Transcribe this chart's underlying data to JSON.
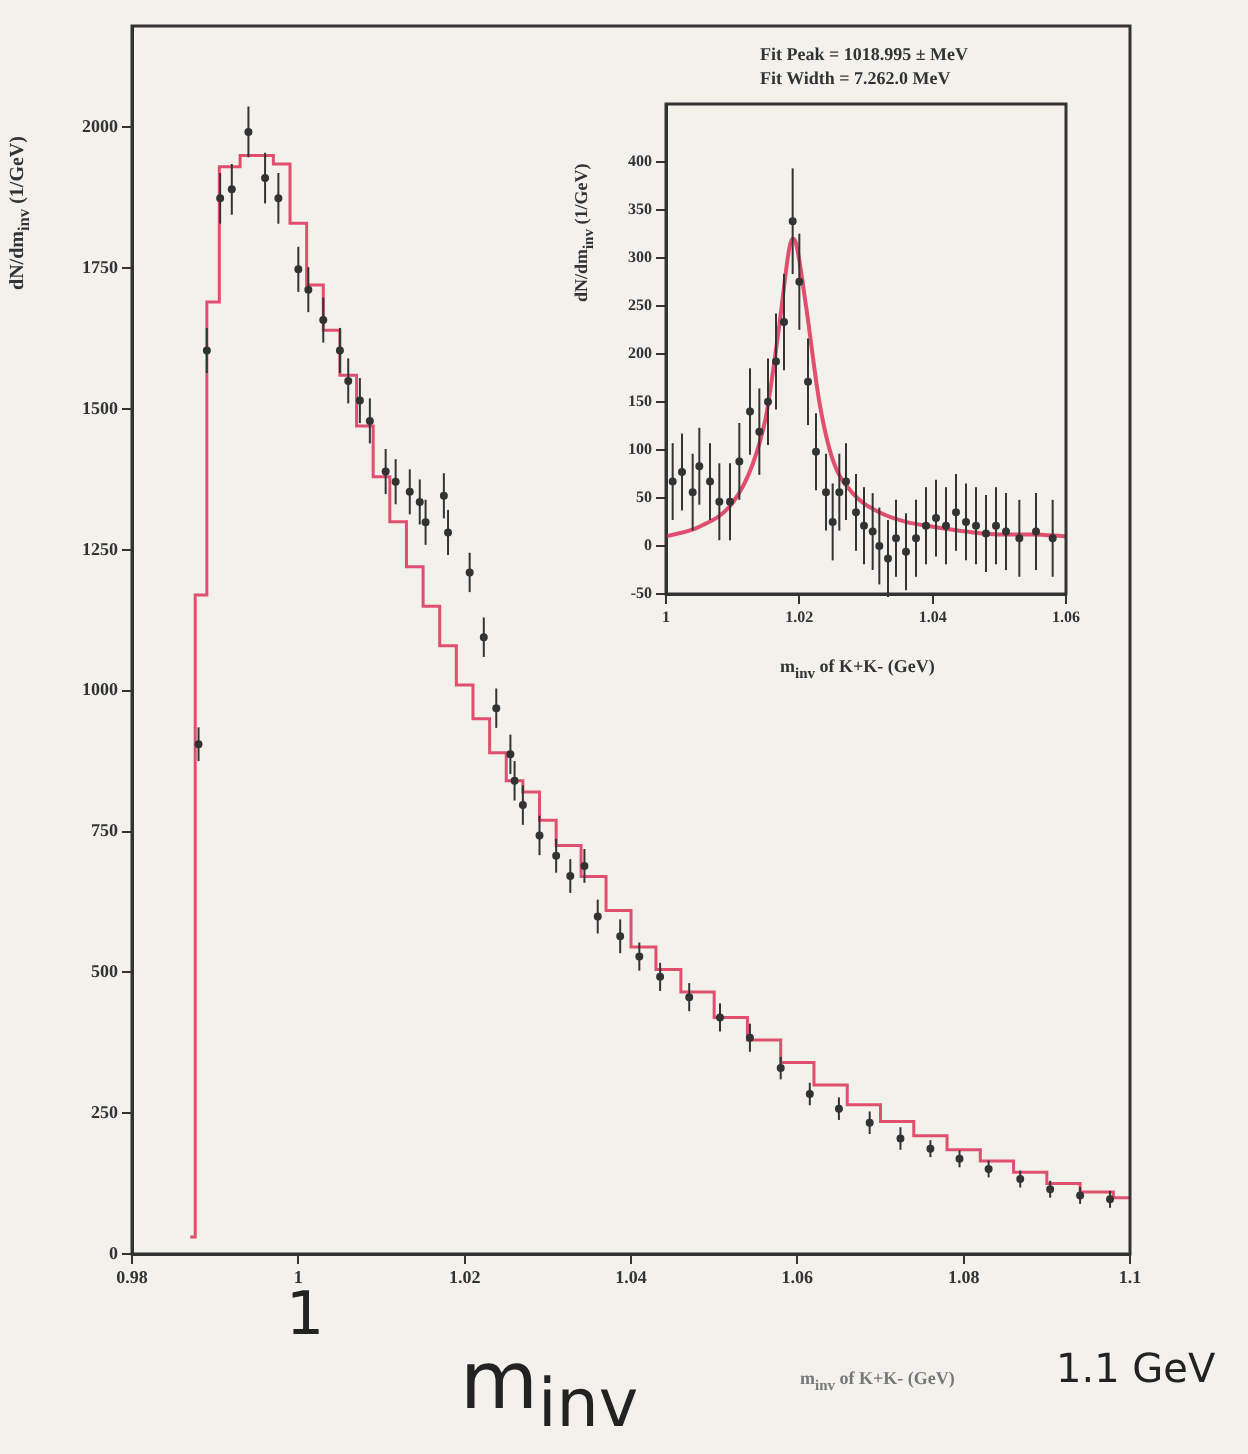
{
  "chart_data": [
    {
      "type": "scatter",
      "ylabel": "dN/dm$_{inv}$ (1/GeV)",
      "xlabel": "m$_{inv}$ of K+K- (GeV)",
      "xlim": [
        0.98,
        1.1
      ],
      "xticks": [
        0.98,
        1,
        1.02,
        1.04,
        1.06,
        1.08,
        1.1
      ],
      "ylim": [
        0,
        2180
      ],
      "yticks": [
        0,
        250,
        500,
        750,
        1000,
        1250,
        1500,
        1750,
        2000
      ],
      "grid": false,
      "legend": false,
      "annotations": [
        "1",
        "m$_{inv}$",
        "1.1 GeV"
      ],
      "series": [
        {
          "type": "step",
          "color": "#e0506e",
          "x": [
            0.987,
            0.9876,
            0.989,
            0.9905,
            0.993,
            0.997,
            0.999,
            1.001,
            1.003,
            1.005,
            1.007,
            1.009,
            1.011,
            1.013,
            1.015,
            1.017,
            1.019,
            1.021,
            1.023,
            1.025,
            1.027,
            1.029,
            1.031,
            1.034,
            1.037,
            1.04,
            1.043,
            1.046,
            1.05,
            1.054,
            1.058,
            1.062,
            1.066,
            1.07,
            1.074,
            1.078,
            1.082,
            1.086,
            1.09,
            1.094,
            1.098,
            1.1
          ],
          "values": [
            30,
            1170,
            1690,
            1930,
            1950,
            1935,
            1830,
            1720,
            1640,
            1560,
            1470,
            1380,
            1300,
            1220,
            1150,
            1080,
            1010,
            950,
            890,
            840,
            820,
            770,
            725,
            670,
            610,
            545,
            505,
            465,
            420,
            380,
            340,
            300,
            265,
            235,
            210,
            185,
            165,
            145,
            125,
            110,
            100,
            100
          ]
        },
        {
          "marker": "circle",
          "color": "#333333",
          "x": [
            0.988,
            0.989,
            0.9906,
            0.992,
            0.994,
            0.996,
            0.9976,
            1.0,
            1.0012,
            1.003,
            1.005,
            1.006,
            1.0074,
            1.0086,
            1.0105,
            1.0117,
            1.0134,
            1.0146,
            1.0153,
            1.0175,
            1.018,
            1.0206,
            1.0223,
            1.0238,
            1.0255,
            1.026,
            1.027,
            1.029,
            1.031,
            1.0327,
            1.0344,
            1.036,
            1.0387,
            1.041,
            1.0435,
            1.047,
            1.0507,
            1.0543,
            1.058,
            1.0615,
            1.065,
            1.0687,
            1.0724,
            1.076,
            1.0795,
            1.083,
            1.0868,
            1.0904,
            1.094,
            1.0976
          ],
          "values": [
            905,
            1604,
            1874,
            1890,
            1992,
            1910,
            1874,
            1748,
            1712,
            1658,
            1604,
            1550,
            1515,
            1479,
            1389,
            1371,
            1353,
            1335,
            1299,
            1346,
            1281,
            1210,
            1095,
            969,
            887,
            840,
            797,
            743,
            707,
            671,
            689,
            599,
            564,
            528,
            492,
            456,
            420,
            384,
            330,
            284,
            258,
            233,
            205,
            187,
            169,
            151,
            133,
            115,
            104,
            97
          ],
          "errors": [
            30,
            40,
            45,
            45,
            45,
            45,
            45,
            40,
            40,
            40,
            40,
            40,
            40,
            40,
            40,
            40,
            40,
            40,
            40,
            40,
            40,
            35,
            35,
            35,
            35,
            35,
            35,
            35,
            30,
            30,
            30,
            30,
            30,
            25,
            25,
            25,
            25,
            25,
            20,
            20,
            20,
            20,
            20,
            15,
            15,
            15,
            15,
            15,
            15,
            15
          ]
        }
      ]
    },
    {
      "type": "scatter",
      "ylabel": "dN/dm$_{inv}$ (1/GeV)",
      "xlabel": "m$_{inv}$ of K+K- (GeV)",
      "xlim": [
        1,
        1.06
      ],
      "xticks": [
        1,
        1.02,
        1.04,
        1.06
      ],
      "ylim": [
        -50,
        460
      ],
      "yticks": [
        -50,
        0,
        50,
        100,
        150,
        200,
        250,
        300,
        350,
        400
      ],
      "grid": false,
      "legend": false,
      "annotations": [
        "Fit Peak = 1018.995 ± MeV",
        "Fit Width = 7.262.0 MeV"
      ],
      "series": [
        {
          "marker": "circle",
          "color": "#333333",
          "x": [
            1.001,
            1.0024,
            1.004,
            1.005,
            1.0066,
            1.008,
            1.0096,
            1.011,
            1.0126,
            1.014,
            1.0153,
            1.0165,
            1.0177,
            1.019,
            1.02,
            1.0213,
            1.0225,
            1.024,
            1.025,
            1.026,
            1.027,
            1.0285,
            1.0297,
            1.031,
            1.032,
            1.0333,
            1.0345,
            1.036,
            1.0375,
            1.039,
            1.0405,
            1.042,
            1.0435,
            1.045,
            1.0465,
            1.048,
            1.0495,
            1.051,
            1.053,
            1.0555,
            1.058
          ],
          "values": [
            67,
            77,
            56,
            83,
            67,
            46,
            46,
            88,
            140,
            119,
            150,
            192,
            233,
            338,
            275,
            171,
            98,
            56,
            25,
            56,
            67,
            35,
            21,
            15,
            0,
            -13,
            8,
            -6,
            8,
            21,
            29,
            21,
            35,
            25,
            21,
            13,
            21,
            15,
            8,
            15,
            8
          ],
          "errors": [
            40,
            40,
            40,
            40,
            40,
            40,
            40,
            40,
            45,
            45,
            45,
            50,
            50,
            55,
            50,
            45,
            40,
            40,
            40,
            40,
            40,
            40,
            40,
            40,
            40,
            40,
            40,
            40,
            40,
            40,
            40,
            40,
            40,
            40,
            40,
            40,
            40,
            40,
            40,
            40,
            40
          ]
        },
        {
          "type": "line",
          "color": "#e0506e",
          "x": [
            1.0,
            1.005,
            1.01,
            1.013,
            1.015,
            1.017,
            1.0185,
            1.019,
            1.0195,
            1.021,
            1.023,
            1.025,
            1.028,
            1.032,
            1.036,
            1.04,
            1.045,
            1.05,
            1.055,
            1.06
          ],
          "values": [
            10,
            20,
            45,
            85,
            135,
            230,
            310,
            320,
            315,
            250,
            150,
            90,
            55,
            35,
            25,
            20,
            15,
            12,
            12,
            10
          ]
        }
      ]
    }
  ]
}
